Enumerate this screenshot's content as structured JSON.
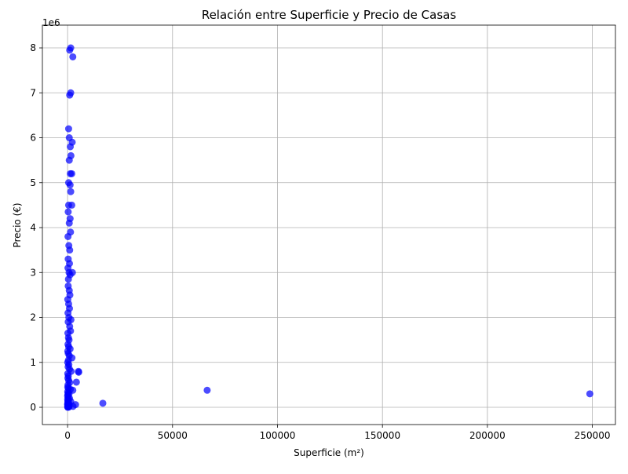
{
  "chart_data": {
    "type": "scatter",
    "title": "Relación entre Superficie y Precio de Casas",
    "x_label": "Superficie (m²)",
    "y_label": "Precio (€)",
    "y_offset_label": "1e6",
    "color": "#0000ff",
    "grid": true,
    "xlim": [
      -12000,
      261000
    ],
    "ylim": [
      -384000,
      8507000
    ],
    "xticks": [
      0,
      50000,
      100000,
      150000,
      200000,
      250000
    ],
    "yticks": [
      0,
      {
        "value": 1000000,
        "label": "1"
      },
      {
        "value": 2000000,
        "label": "2"
      },
      {
        "value": 3000000,
        "label": "3"
      },
      {
        "value": 4000000,
        "label": "4"
      },
      {
        "value": 5000000,
        "label": "5"
      },
      {
        "value": 6000000,
        "label": "6"
      },
      {
        "value": 7000000,
        "label": "7"
      },
      {
        "value": 8000000,
        "label": "8"
      }
    ],
    "x": [
      248800,
      66500,
      16800,
      5200,
      5300,
      4200,
      3800,
      2500,
      1500,
      1000,
      1500,
      1000,
      500,
      800,
      2200,
      1300,
      1600,
      800,
      1300,
      2000,
      500,
      1200,
      1500,
      500,
      2000,
      300,
      1200,
      800,
      1400,
      200,
      600,
      1000,
      300,
      900,
      200,
      700,
      1200,
      400,
      2300,
      300,
      800,
      1100,
      100,
      500,
      900,
      1600,
      200,
      600,
      300,
      1000,
      1400,
      150,
      400,
      700,
      200,
      500,
      1200,
      100,
      300,
      800,
      2100,
      400,
      50,
      600,
      250,
      900,
      1700,
      100,
      350,
      150,
      500,
      1000,
      200,
      80,
      400,
      1300,
      2500,
      60,
      250,
      700,
      120,
      30,
      400,
      900,
      50,
      200,
      1500,
      100,
      300,
      600,
      80,
      20,
      150,
      400,
      800,
      2600,
      50,
      200,
      600,
      100
    ],
    "values": [
      300000,
      380000,
      90000,
      800000,
      780000,
      560000,
      60000,
      7800000,
      8000000,
      7950000,
      7000000,
      6950000,
      6200000,
      6000000,
      5900000,
      5800000,
      5600000,
      5500000,
      5200000,
      5200000,
      5000000,
      4950000,
      4800000,
      4500000,
      4500000,
      4350000,
      4200000,
      4100000,
      3900000,
      3800000,
      3600000,
      3500000,
      3300000,
      3200000,
      3100000,
      3000000,
      2950000,
      2850000,
      3000000,
      2700000,
      2600000,
      2500000,
      2400000,
      2300000,
      2200000,
      1950000,
      2100000,
      2000000,
      1900000,
      1800000,
      1700000,
      1650000,
      1550000,
      1500000,
      1400000,
      1350000,
      1300000,
      1250000,
      1200000,
      1150000,
      1100000,
      1050000,
      1000000,
      950000,
      900000,
      850000,
      800000,
      750000,
      700000,
      650000,
      600000,
      550000,
      500000,
      450000,
      420000,
      400000,
      380000,
      350000,
      320000,
      300000,
      280000,
      250000,
      220000,
      200000,
      180000,
      150000,
      130000,
      120000,
      100000,
      90000,
      80000,
      60000,
      50000,
      40000,
      30000,
      20000,
      15000,
      10000,
      5000,
      0
    ]
  }
}
